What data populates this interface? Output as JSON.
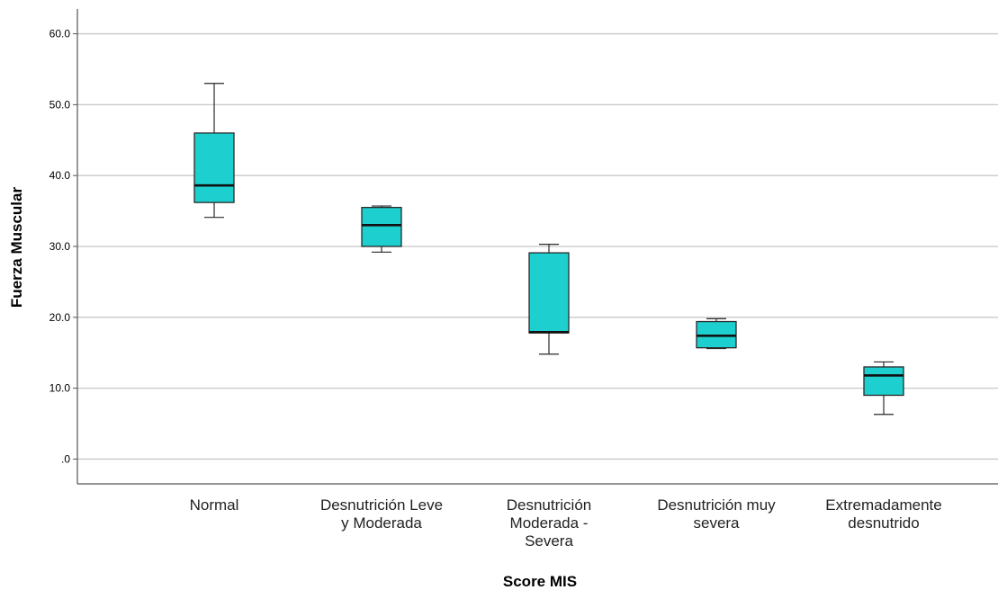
{
  "chart_data": {
    "type": "boxplot",
    "xlabel": "Score MIS",
    "ylabel": "Fuerza Muscular",
    "ylim": [
      -3.5,
      63.5
    ],
    "y_ticks": [
      0,
      10,
      20,
      30,
      40,
      50,
      60
    ],
    "y_tick_labels": [
      ".0",
      "10.0",
      "20.0",
      "30.0",
      "40.0",
      "50.0",
      "60.0"
    ],
    "grid": true,
    "colors": {
      "box_fill": "#1DCFCF",
      "box_stroke": "#2a2a2a",
      "grid": "#c8c8c8",
      "axis": "#555555"
    },
    "categories": [
      {
        "label_lines": [
          "Normal"
        ],
        "min": 34.1,
        "q1": 36.2,
        "median": 38.6,
        "q3": 46.0,
        "max": 53.0
      },
      {
        "label_lines": [
          "Desnutrición Leve",
          "y Moderada"
        ],
        "min": 29.2,
        "q1": 30.0,
        "median": 33.0,
        "q3": 35.5,
        "max": 35.7
      },
      {
        "label_lines": [
          "Desnutrición",
          "Moderada -",
          "Severa"
        ],
        "min": 14.8,
        "q1": 17.8,
        "median": 17.9,
        "q3": 29.1,
        "max": 30.3
      },
      {
        "label_lines": [
          "Desnutrición muy",
          "severa"
        ],
        "min": 15.6,
        "q1": 15.7,
        "median": 17.4,
        "q3": 19.4,
        "max": 19.8
      },
      {
        "label_lines": [
          "Extremadamente",
          "desnutrido"
        ],
        "min": 6.3,
        "q1": 9.0,
        "median": 11.8,
        "q3": 13.0,
        "max": 13.7
      }
    ]
  }
}
